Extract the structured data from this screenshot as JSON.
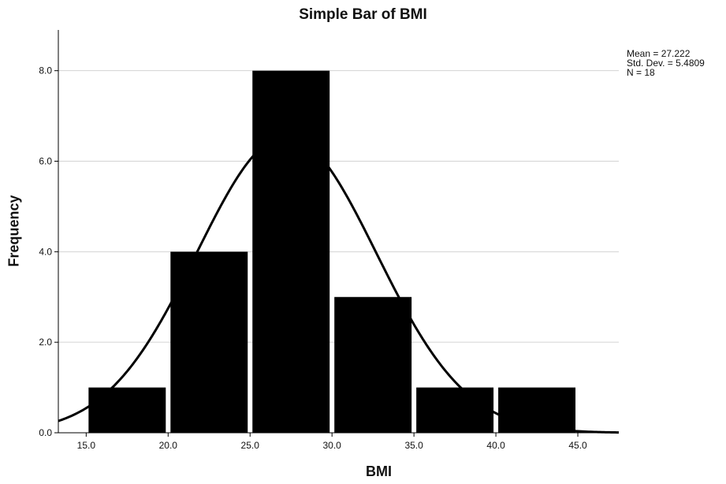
{
  "chart_data": {
    "type": "bar",
    "title": "Simple Bar of BMI",
    "xlabel": "BMI",
    "ylabel": "Frequency",
    "bins": [
      {
        "from": 15.0,
        "to": 20.0,
        "value": 1
      },
      {
        "from": 20.0,
        "to": 25.0,
        "value": 4
      },
      {
        "from": 25.0,
        "to": 30.0,
        "value": 8
      },
      {
        "from": 30.0,
        "to": 35.0,
        "value": 3
      },
      {
        "from": 35.0,
        "to": 40.0,
        "value": 1
      },
      {
        "from": 40.0,
        "to": 45.0,
        "value": 1
      }
    ],
    "xlim": [
      13.3,
      47.5
    ],
    "ylim": [
      0,
      8.9
    ],
    "xticks": [
      "15.0",
      "20.0",
      "25.0",
      "30.0",
      "35.0",
      "40.0",
      "45.0"
    ],
    "yticks": [
      "0.0",
      "2.0",
      "4.0",
      "6.0",
      "8.0"
    ],
    "grid": "horizontal",
    "normal_curve": {
      "mean": 27.222,
      "std_dev": 5.4809,
      "n": 18
    },
    "stats_lines": [
      "Mean = 27.222",
      "Std. Dev. = 5.4809",
      "N = 18"
    ],
    "bar_color": "#000000",
    "curve_color": "#000000",
    "grid_color": "#d3d3d3"
  }
}
